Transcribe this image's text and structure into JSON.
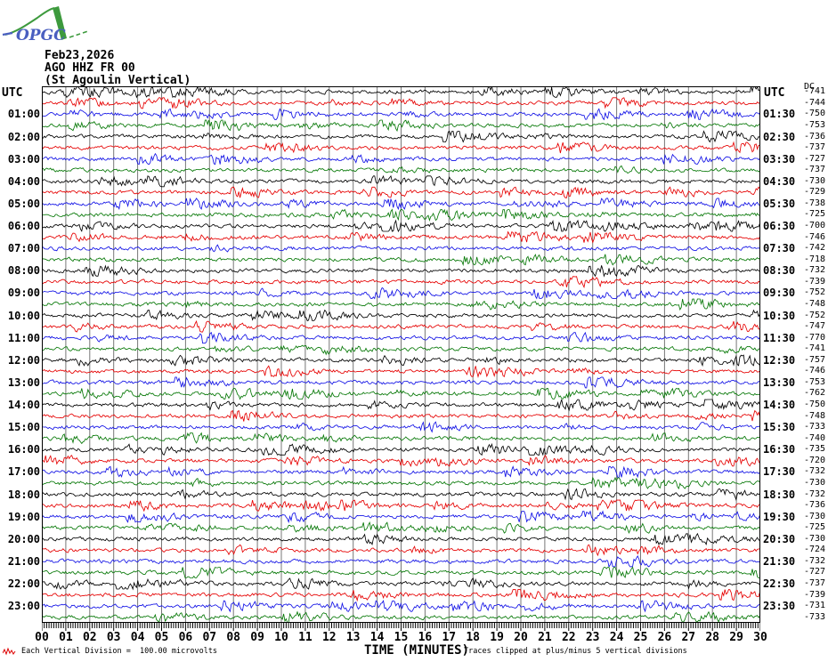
{
  "logo": {
    "text": "OPGC"
  },
  "header": {
    "date": "Feb23,2026",
    "station": "AGO HHZ FR 00",
    "location": "(St Agoulin Vertical)"
  },
  "axes": {
    "utc_left": "UTC",
    "utc_right": "UTC",
    "dc_label": "DC",
    "xlabel": "TIME (MINUTES)",
    "minute_labels": [
      "00",
      "01",
      "02",
      "03",
      "04",
      "05",
      "06",
      "07",
      "08",
      "09",
      "10",
      "11",
      "12",
      "13",
      "14",
      "15",
      "16",
      "17",
      "18",
      "19",
      "20",
      "21",
      "22",
      "23",
      "24",
      "25",
      "26",
      "27",
      "28",
      "29",
      "30"
    ]
  },
  "footer": {
    "division_note": "Each Vertical Division =  100.00 microvolts",
    "clip_note": "Traces clipped at plus/minus 5 vertical divisions"
  },
  "colors": {
    "grid": "#777777",
    "border": "#000000",
    "text": "#000000",
    "logo_blue": "#4a5fc0",
    "logo_green": "#3d9a3d",
    "footer_glyph_red": "#dd0000"
  },
  "chart_data": {
    "type": "line",
    "subtype": "seismogram-helicorder-dayplot",
    "title": "AGO HHZ FR 00 (St Agoulin Vertical) Feb23,2026",
    "xlabel": "TIME (MINUTES)",
    "x_range_minutes": [
      0,
      30
    ],
    "rows": 48,
    "minutes_per_row": 30,
    "grid": true,
    "trace_color_cycle": [
      "#000000",
      "#e60000",
      "#1212e6",
      "#067806"
    ],
    "left_time_labels": [
      "01:00",
      "02:00",
      "03:00",
      "04:00",
      "05:00",
      "06:00",
      "07:00",
      "08:00",
      "09:00",
      "10:00",
      "11:00",
      "12:00",
      "13:00",
      "14:00",
      "15:00",
      "16:00",
      "17:00",
      "18:00",
      "19:00",
      "20:00",
      "21:00",
      "22:00",
      "23:00"
    ],
    "right_time_labels": [
      "01:30",
      "02:30",
      "03:30",
      "04:30",
      "05:30",
      "06:30",
      "07:30",
      "08:30",
      "09:30",
      "10:30",
      "11:30",
      "12:30",
      "13:30",
      "14:30",
      "15:30",
      "16:30",
      "17:30",
      "18:30",
      "19:30",
      "20:30",
      "21:30",
      "22:30",
      "23:30"
    ],
    "dc_offsets": [
      -741,
      -744,
      -750,
      -753,
      -736,
      -737,
      -727,
      -737,
      -730,
      -729,
      -738,
      -725,
      -700,
      -746,
      -742,
      -718,
      -732,
      -739,
      -752,
      -748,
      -752,
      -747,
      -770,
      -741,
      -757,
      -746,
      -753,
      -762,
      -750,
      -748,
      -733,
      -740,
      -735,
      -720,
      -732,
      -730,
      -732,
      -736,
      -730,
      -725,
      -730,
      -724,
      -732,
      -727,
      -737,
      -739,
      -731,
      -733
    ],
    "amplitude_note": "random seismic background noise, clipped at plus/minus 5 vertical divisions",
    "vertical_division_microvolts": 100.0
  }
}
